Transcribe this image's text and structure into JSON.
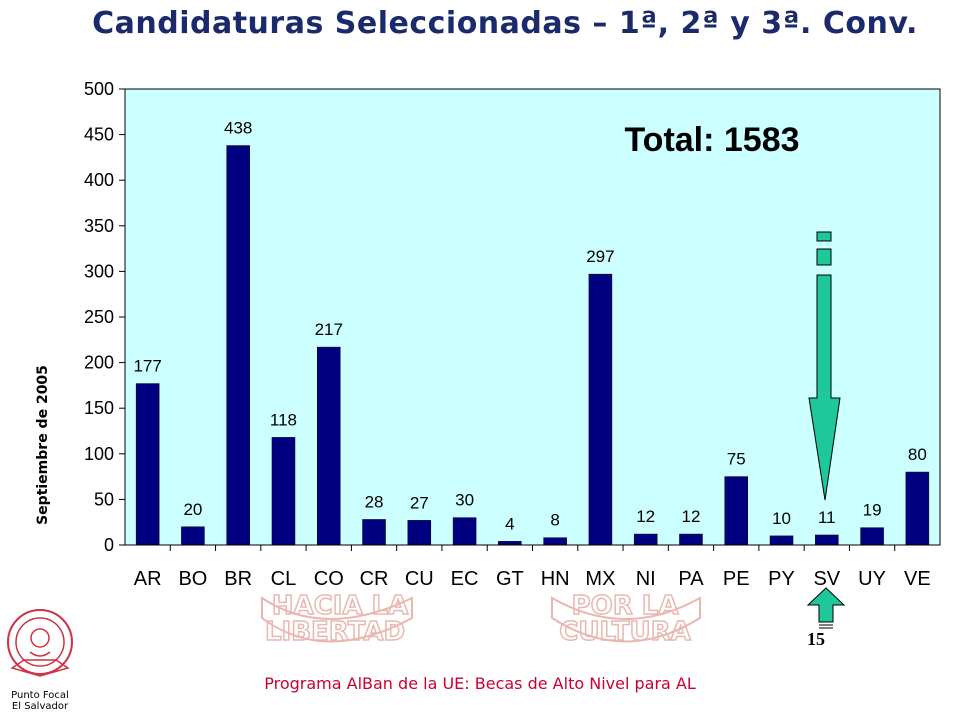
{
  "header": {
    "title": "Candidaturas Seleccionadas – 1ª, 2ª y 3ª. Conv."
  },
  "footer": {
    "text": "Programa AlBan de la UE: Becas de Alto Nivel para AL"
  },
  "logo": {
    "caption_line1": "Punto Focal",
    "caption_line2": "El Salvador"
  },
  "watermark": {
    "left_line1": "HACIA LA",
    "left_line2": "LIBERTAD",
    "right_line1": "POR LA",
    "right_line2": "CULTURA"
  },
  "annotation": {
    "total": "Total: 1583",
    "sv_marker": "15"
  },
  "colors": {
    "bar": "#000080",
    "plot_bg": "#ccffff",
    "arrow": "#1ec89a",
    "title": "#1a2a6c",
    "footer": "#cc0033"
  },
  "chart_data": {
    "type": "bar",
    "title": "Candidaturas Seleccionadas – 1ª, 2ª y 3ª. Conv.",
    "ylabel": "Septiembre de 2005",
    "xlabel": "",
    "categories": [
      "AR",
      "BO",
      "BR",
      "CL",
      "CO",
      "CR",
      "CU",
      "EC",
      "GT",
      "HN",
      "MX",
      "NI",
      "PA",
      "PE",
      "PY",
      "SV",
      "UY",
      "VE"
    ],
    "values": [
      177,
      20,
      438,
      118,
      217,
      28,
      27,
      30,
      4,
      8,
      297,
      12,
      12,
      75,
      10,
      11,
      19,
      80
    ],
    "labels": [
      "177",
      "20",
      "438",
      "118",
      "217",
      "28",
      "27",
      "30",
      "4",
      "8",
      "297",
      "12",
      "12",
      "75",
      "10",
      "11",
      "19",
      "80"
    ],
    "yticks": [
      0,
      50,
      100,
      150,
      200,
      250,
      300,
      350,
      400,
      450,
      500
    ],
    "ylim": [
      0,
      500
    ],
    "grid": false,
    "legend": "none"
  }
}
